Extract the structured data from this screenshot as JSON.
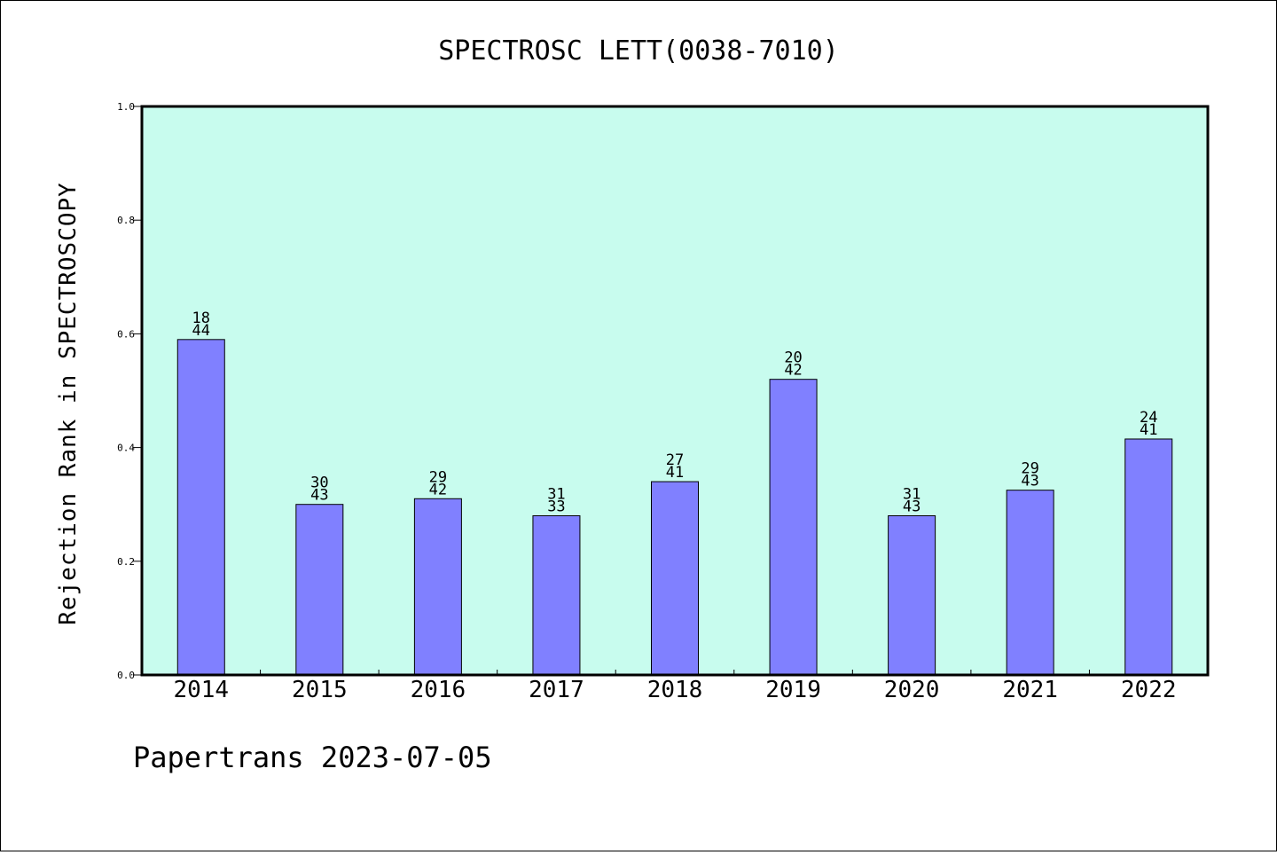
{
  "chart_data": {
    "type": "bar",
    "title": "SPECTROSC LETT(0038-7010)",
    "xlabel": "",
    "ylabel": "Rejection Rank in SPECTROSCOPY",
    "ylim": [
      0,
      1.0
    ],
    "yticks": [
      "0.0",
      "0.2",
      "0.4",
      "0.6",
      "0.8",
      "1.0"
    ],
    "categories": [
      "2014",
      "2015",
      "2016",
      "2017",
      "2018",
      "2019",
      "2020",
      "2021",
      "2022"
    ],
    "values": [
      0.59,
      0.3,
      0.31,
      0.28,
      0.34,
      0.52,
      0.28,
      0.325,
      0.415
    ],
    "bar_labels_top": [
      "18",
      "30",
      "29",
      "31",
      "27",
      "20",
      "31",
      "29",
      "24"
    ],
    "bar_labels_bottom": [
      "44",
      "43",
      "42",
      "33",
      "41",
      "42",
      "43",
      "43",
      "41"
    ],
    "grid": false,
    "colors": {
      "plot_background": "#c8fcee",
      "bar_fill": "#8080ff",
      "bar_edge": "#000000"
    }
  },
  "footer": {
    "text": "Papertrans 2023-07-05"
  }
}
